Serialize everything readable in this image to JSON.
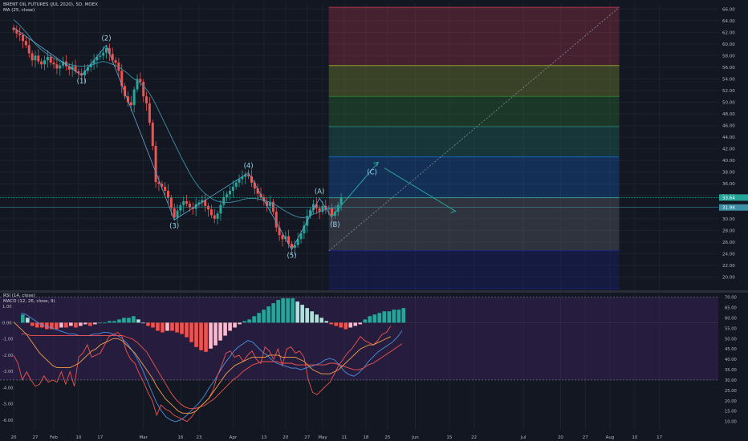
{
  "legend": {
    "symbol": "BRENT OIL FUTURES (JUL 2020), 5D, MOEX",
    "ma": "MA (25, close)",
    "rsi": "RSI (14, close)",
    "macd": "MACD (12, 26, close, 9)"
  },
  "price_badges": {
    "last": "33.64",
    "ma": "31.94"
  },
  "chart_data": [
    {
      "type": "candlestick",
      "title": "BRENT OIL FUTURES (JUL 2020), 5D, MOEX",
      "ylim": [
        18,
        67
      ],
      "yticks": [
        "20.00",
        "22.00",
        "24.00",
        "26.00",
        "28.00",
        "30.00",
        "32.00",
        "34.00",
        "36.00",
        "38.00",
        "40.00",
        "42.00",
        "44.00",
        "46.00",
        "48.00",
        "50.00",
        "52.00",
        "54.00",
        "56.00",
        "58.00",
        "60.00",
        "62.00",
        "64.00",
        "66.00"
      ],
      "xticks": [
        {
          "label": "20",
          "i": 0
        },
        {
          "label": "27",
          "i": 7
        },
        {
          "label": "Feb",
          "i": 13
        },
        {
          "label": "10",
          "i": 21
        },
        {
          "label": "17",
          "i": 28
        },
        {
          "label": "Mar",
          "i": 42
        },
        {
          "label": "16",
          "i": 54
        },
        {
          "label": "23",
          "i": 60
        },
        {
          "label": "Apr",
          "i": 71
        },
        {
          "label": "13",
          "i": 81
        },
        {
          "label": "20",
          "i": 88
        },
        {
          "label": "27",
          "i": 95
        },
        {
          "label": "May",
          "i": 100
        },
        {
          "label": "11",
          "i": 107
        },
        {
          "label": "18",
          "i": 114
        },
        {
          "label": "25",
          "i": 121
        },
        {
          "label": "Jun",
          "i": 130
        },
        {
          "label": "15",
          "i": 141
        },
        {
          "label": "22",
          "i": 149
        },
        {
          "label": "Jul",
          "i": 165
        },
        {
          "label": "20",
          "i": 177
        },
        {
          "label": "27",
          "i": 185
        },
        {
          "label": "Aug",
          "i": 193
        },
        {
          "label": "10",
          "i": 201
        },
        {
          "label": "17",
          "i": 209
        }
      ],
      "close": [
        62.4,
        61.8,
        61.5,
        60.5,
        59.8,
        58.4,
        57.2,
        58.0,
        57.0,
        56.5,
        57.2,
        57.8,
        56.8,
        56.5,
        55.8,
        56.3,
        57.0,
        56.2,
        55.6,
        56.2,
        55.3,
        55.0,
        54.6,
        55.4,
        56.0,
        56.6,
        57.2,
        57.8,
        58.0,
        58.5,
        59.3,
        58.3,
        57.2,
        56.8,
        55.4,
        52.8,
        51.0,
        50.0,
        49.5,
        52.2,
        54.0,
        53.5,
        51.0,
        49.8,
        46.5,
        42.5,
        36.3,
        36.0,
        35.5,
        34.8,
        33.6,
        31.8,
        30.2,
        31.4,
        32.3,
        33.0,
        32.6,
        32.0,
        31.7,
        32.5,
        32.8,
        33.2,
        32.2,
        31.6,
        30.6,
        30.0,
        30.9,
        32.4,
        33.7,
        34.2,
        34.8,
        35.5,
        36.2,
        36.8,
        37.2,
        37.6,
        37.3,
        36.2,
        35.2,
        34.3,
        33.7,
        33.0,
        32.2,
        32.9,
        31.2,
        28.5,
        27.2,
        26.5,
        27.0,
        25.7,
        25.0,
        25.5,
        26.5,
        27.5,
        28.8,
        30.5,
        31.5,
        32.5,
        31.8,
        31.2,
        32.2,
        31.6,
        31.8,
        30.5,
        31.2,
        32.4,
        33.6
      ],
      "ma": [
        64.2,
        63.7,
        63.2,
        62.6,
        62.0,
        61.4,
        60.7,
        60.0,
        59.5,
        59.0,
        58.6,
        58.2,
        57.9,
        57.6,
        57.3,
        57.0,
        56.8,
        56.6,
        56.5,
        56.4,
        56.3,
        56.2,
        56.2,
        56.2,
        56.3,
        56.4,
        56.5,
        56.7,
        56.9,
        57.0,
        56.9,
        56.7,
        56.5,
        56.3,
        56.1,
        55.7,
        55.3,
        54.9,
        54.4,
        54.0,
        53.7,
        53.3,
        52.8,
        52.2,
        51.5,
        50.6,
        49.6,
        48.5,
        47.4,
        46.3,
        45.2,
        44.1,
        43.0,
        41.9,
        40.8,
        39.8,
        38.8,
        37.8,
        36.9,
        36.1,
        35.4,
        34.8,
        34.3,
        33.9,
        33.5,
        33.2,
        33.0,
        32.9,
        32.8,
        32.8,
        32.8,
        32.9,
        33.0,
        33.1,
        33.3,
        33.4,
        33.5,
        33.5,
        33.5,
        33.4,
        33.3,
        33.2,
        33.0,
        32.8,
        32.6,
        32.3,
        32.0,
        31.6,
        31.3,
        31.0,
        30.7,
        30.5,
        30.3,
        30.2,
        30.2,
        30.3,
        30.5,
        30.8,
        31.0,
        31.2,
        31.4,
        31.6,
        31.7,
        31.8,
        31.9,
        31.95,
        31.94
      ],
      "wave_labels": [
        "(1)",
        "(2)",
        "(3)",
        "(4)",
        "(5)",
        "(A)",
        "(B)",
        "(C)"
      ],
      "fib_bands_top_to_bottom": [
        {
          "from": 66.3,
          "to": 56.3,
          "color": "#b2374b"
        },
        {
          "from": 56.3,
          "to": 51.0,
          "color": "#8c9a2e"
        },
        {
          "from": 51.0,
          "to": 45.8,
          "color": "#2e7d32"
        },
        {
          "from": 45.8,
          "to": 40.6,
          "color": "#1f7a6c"
        },
        {
          "from": 40.6,
          "to": 33.6,
          "color": "#1565c0"
        },
        {
          "from": 33.6,
          "to": 24.5,
          "color": "#6b6f7a"
        },
        {
          "from": 24.5,
          "to": 18.0,
          "color": "#1a237e"
        }
      ]
    },
    {
      "type": "line",
      "title": "RSI (14, close)",
      "ylim": [
        6,
        71
      ],
      "yticks": [
        "10.00",
        "15.00",
        "20.00",
        "25.00",
        "30.00",
        "35.00",
        "40.00",
        "45.00",
        "50.00",
        "55.00",
        "60.00",
        "65.00",
        "70.00"
      ],
      "bands": [
        30,
        70
      ],
      "series": [
        {
          "name": "RSI",
          "color": "#ef5350",
          "values": [
            42,
            38,
            30,
            34,
            30,
            27,
            28,
            32,
            29,
            30,
            29,
            34,
            28,
            34,
            27,
            41,
            43,
            47,
            41,
            42,
            43,
            47,
            51,
            52,
            53,
            51,
            44,
            40,
            38,
            33,
            29,
            24,
            20,
            13,
            18,
            16,
            15,
            13,
            12,
            11,
            10,
            12,
            15,
            17,
            19,
            21,
            25,
            32,
            37,
            43,
            44,
            41,
            42,
            39,
            42,
            44,
            40,
            38,
            46,
            44,
            40,
            45,
            37,
            45,
            46,
            43,
            44,
            41,
            30,
            24,
            23,
            25,
            27,
            29,
            33,
            37,
            40,
            43,
            45,
            48,
            51,
            49,
            48,
            47,
            49,
            52,
            53,
            56
          ]
        },
        {
          "name": "RSI MA",
          "color": "#f0a04b",
          "values": [
            58,
            56,
            54,
            52,
            49,
            46,
            43,
            41,
            39,
            37,
            36,
            36,
            36,
            36,
            37,
            38,
            40,
            42,
            44,
            45,
            47,
            48,
            49,
            50,
            50,
            49,
            47,
            45,
            43,
            40,
            37,
            34,
            31,
            27,
            24,
            21,
            19,
            17,
            15,
            14,
            14,
            14,
            15,
            17,
            19,
            21,
            24,
            27,
            30,
            33,
            35,
            37,
            38,
            39,
            40,
            41,
            41,
            41,
            41,
            42,
            42,
            42,
            41,
            41,
            41,
            41,
            40,
            39,
            37,
            35,
            34,
            33,
            33,
            33,
            34,
            35,
            37,
            39,
            41,
            43,
            45,
            46,
            47,
            47,
            48,
            49,
            50,
            51
          ]
        }
      ]
    },
    {
      "type": "bar",
      "title": "MACD (12, 26, close, 9)",
      "ylim": [
        -6.6,
        1.7
      ],
      "yticks": [
        "1.00",
        "0.00",
        "-1.00",
        "-2.00",
        "-3.00",
        "-4.00",
        "-5.00",
        "-6.00"
      ],
      "histogram": [
        0.5,
        0.3,
        -0.2,
        -0.3,
        -0.3,
        -0.4,
        -0.4,
        -0.4,
        -0.3,
        -0.3,
        -0.2,
        -0.3,
        -0.2,
        -0.1,
        -0.2,
        -0.1,
        0,
        0,
        0.1,
        0.1,
        0.2,
        0.3,
        0.3,
        0.4,
        0.2,
        0,
        -0.2,
        -0.3,
        -0.5,
        -0.6,
        -0.5,
        -0.5,
        -0.6,
        -0.7,
        -0.9,
        -1.2,
        -1.5,
        -1.7,
        -1.8,
        -1.6,
        -1.4,
        -1.1,
        -0.8,
        -0.5,
        -0.3,
        -0.1,
        0.1,
        0.2,
        0.4,
        0.6,
        0.8,
        1.0,
        1.2,
        1.4,
        1.5,
        1.5,
        1.5,
        1.3,
        1.1,
        0.9,
        0.7,
        0.5,
        0.3,
        0.1,
        -0.1,
        -0.2,
        -0.3,
        -0.4,
        -0.3,
        -0.2,
        -0.1,
        0.2,
        0.4,
        0.5,
        0.6,
        0.7,
        0.7,
        0.8,
        0.8,
        0.9
      ],
      "series": [
        {
          "name": "MACD",
          "color": "#4a90e2",
          "values": [
            0.6,
            0.5,
            0.3,
            0.1,
            -0.1,
            -0.2,
            -0.3,
            -0.4,
            -0.5,
            -0.6,
            -0.7,
            -0.7,
            -0.8,
            -0.8,
            -0.8,
            -0.7,
            -0.7,
            -0.6,
            -0.6,
            -0.7,
            -0.8,
            -1.0,
            -1.3,
            -1.7,
            -2.2,
            -2.8,
            -3.5,
            -4.2,
            -4.9,
            -5.4,
            -5.8,
            -6.0,
            -6.1,
            -6.0,
            -5.8,
            -5.5,
            -5.2,
            -4.9,
            -4.5,
            -4.0,
            -3.6,
            -3.1,
            -2.6,
            -2.2,
            -1.8,
            -1.5,
            -1.3,
            -1.1,
            -1.2,
            -1.5,
            -1.8,
            -2.0,
            -2.3,
            -2.5,
            -2.6,
            -2.7,
            -2.8,
            -2.8,
            -2.9,
            -2.8,
            -2.7,
            -2.6,
            -2.5,
            -2.3,
            -2.2,
            -2.3,
            -2.6,
            -3.0,
            -3.2,
            -3.3,
            -3.1,
            -2.8,
            -2.4,
            -2.1,
            -1.8,
            -1.6,
            -1.4,
            -1.2,
            -0.9,
            -0.5
          ]
        },
        {
          "name": "Signal",
          "color": "#ef5350",
          "values": [
            -0.7,
            -0.7,
            -0.8,
            -0.8,
            -0.8,
            -0.8,
            -0.8,
            -0.8,
            -0.8,
            -0.8,
            -0.8,
            -0.8,
            -0.8,
            -0.8,
            -0.8,
            -0.8,
            -0.8,
            -0.8,
            -0.8,
            -0.8,
            -0.8,
            -0.8,
            -0.9,
            -1.0,
            -1.2,
            -1.5,
            -1.8,
            -2.3,
            -2.8,
            -3.3,
            -3.8,
            -4.3,
            -4.7,
            -5.0,
            -5.2,
            -5.3,
            -5.3,
            -5.2,
            -5.1,
            -4.9,
            -4.7,
            -4.4,
            -4.1,
            -3.8,
            -3.5,
            -3.3,
            -3.0,
            -2.8,
            -2.6,
            -2.5,
            -2.4,
            -2.4,
            -2.4,
            -2.4,
            -2.5,
            -2.5,
            -2.5,
            -2.6,
            -2.6,
            -2.6,
            -2.6,
            -2.6,
            -2.6,
            -2.6,
            -2.5,
            -2.5,
            -2.6,
            -2.7,
            -2.8,
            -2.9,
            -2.9,
            -2.8,
            -2.6,
            -2.5,
            -2.3,
            -2.1,
            -1.9,
            -1.7,
            -1.5,
            -1.3
          ]
        }
      ]
    }
  ]
}
